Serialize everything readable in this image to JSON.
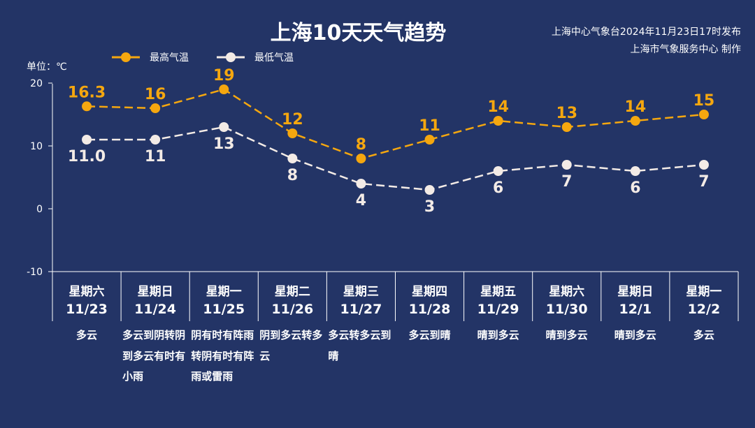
{
  "title": "上海10天天气趋势",
  "source_line1": "上海中心气象台2024年11月23日17时发布",
  "source_line2": "上海市气象服务中心 制作",
  "unit": "单位：℃",
  "colors": {
    "background": "#233466",
    "high": "#f5a70f",
    "low": "#f3ebe6",
    "axis": "#ffffff"
  },
  "chart_data": {
    "type": "line",
    "title": "上海10天天气趋势",
    "ylabel": "单位：℃",
    "ylim": [
      -10,
      20
    ],
    "yticks": [
      "20",
      "10",
      "0",
      "-10"
    ],
    "grid": false,
    "legend_position": "top-left",
    "categories": [
      "11/23",
      "11/24",
      "11/25",
      "11/26",
      "11/27",
      "11/28",
      "11/29",
      "11/30",
      "12/1",
      "12/2"
    ],
    "weekdays": [
      "星期六",
      "星期日",
      "星期一",
      "星期二",
      "星期三",
      "星期四",
      "星期五",
      "星期六",
      "星期日",
      "星期一"
    ],
    "descriptions": [
      "多云",
      "多云到阴转阴到多云有时有小雨",
      "阴有时有阵雨转阴有时有阵雨或雷雨",
      "阴到多云转多云",
      "多云转多云到晴",
      "多云到晴",
      "晴到多云",
      "晴到多云",
      "晴到多云",
      "多云"
    ],
    "series": [
      {
        "name": "最高气温",
        "values": [
          16.3,
          16,
          19,
          12,
          8,
          11,
          14,
          13,
          14,
          15
        ],
        "labels": [
          "16.3",
          "16",
          "19",
          "12",
          "8",
          "11",
          "14",
          "13",
          "14",
          "15"
        ]
      },
      {
        "name": "最低气温",
        "values": [
          11.0,
          11,
          13,
          8,
          4,
          3,
          6,
          7,
          6,
          7
        ],
        "labels": [
          "11.0",
          "11",
          "13",
          "8",
          "4",
          "3",
          "6",
          "7",
          "6",
          "7"
        ]
      }
    ]
  }
}
